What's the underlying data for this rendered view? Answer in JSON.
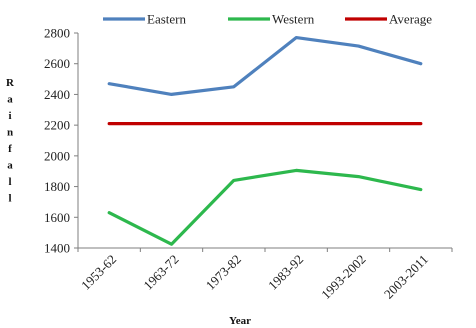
{
  "chart_data": {
    "type": "line",
    "title": "",
    "xlabel": "Year",
    "ylabel": "Rainfall",
    "categories": [
      "1953-62",
      "1963-72",
      "1973-82",
      "1983-92",
      "1993-2002",
      "2003-2011"
    ],
    "ylim": [
      1400,
      2800
    ],
    "yticks": [
      1400,
      1600,
      1800,
      2000,
      2200,
      2400,
      2600,
      2800
    ],
    "grid": false,
    "legend_position": "top",
    "series": [
      {
        "name": "Eastern",
        "color": "#4f81bd",
        "values": [
          2470,
          2400,
          2450,
          2770,
          2715,
          2600
        ]
      },
      {
        "name": "Western",
        "color": "#2db84d",
        "values": [
          1630,
          1425,
          1840,
          1905,
          1865,
          1780
        ]
      },
      {
        "name": "Average",
        "color": "#c00000",
        "values": [
          2210,
          2210,
          2210,
          2210,
          2210,
          2210
        ]
      }
    ]
  }
}
